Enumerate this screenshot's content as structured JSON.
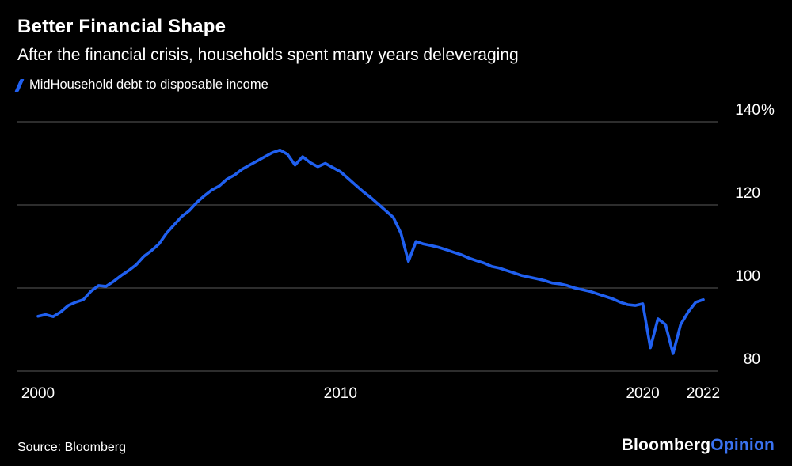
{
  "header": {
    "title": "Better Financial Shape",
    "subtitle": "After the financial crisis, households spent many years deleveraging"
  },
  "legend": {
    "label": "MidHousehold debt to disposable income"
  },
  "source": {
    "label": "Source: Bloomberg"
  },
  "logo": {
    "first": "Bloomberg",
    "second": "Opinion"
  },
  "colors": {
    "background": "#000000",
    "text": "#ffffff",
    "line": "#2060f0",
    "grid": "#5a5a5a",
    "opinion": "#3a72f0"
  },
  "chart_data": {
    "type": "line",
    "title": "Better Financial Shape",
    "subtitle": "After the financial crisis, households spent many years deleveraging",
    "legend": "MidHousehold debt to disposable income",
    "xlabel": "",
    "ylabel": "Household debt to disposable income (%)",
    "x_start": 2000,
    "x_step": 0.25,
    "ylim": [
      80,
      140
    ],
    "yticks": [
      140,
      120,
      100,
      80
    ],
    "ytick_labels": [
      "140%",
      "120",
      "100",
      "80"
    ],
    "xticks": [
      2000,
      2010,
      2020,
      2022
    ],
    "xtick_labels": [
      "2000",
      "2010",
      "2020",
      "2022"
    ],
    "grid": "horizontal",
    "legend_position": "top-left",
    "values": [
      93.2,
      93.6,
      93.1,
      94.2,
      95.8,
      96.6,
      97.2,
      99.2,
      100.6,
      100.4,
      101.6,
      103.0,
      104.2,
      105.6,
      107.6,
      109.0,
      110.6,
      113.2,
      115.2,
      117.2,
      118.6,
      120.6,
      122.2,
      123.6,
      124.6,
      126.2,
      127.2,
      128.6,
      129.6,
      130.6,
      131.6,
      132.6,
      133.2,
      132.2,
      129.6,
      131.6,
      130.2,
      129.2,
      130.0,
      129.0,
      128.0,
      126.4,
      124.8,
      123.2,
      121.8,
      120.2,
      118.6,
      117.0,
      113.2,
      106.4,
      111.2,
      110.6,
      110.2,
      109.8,
      109.2,
      108.6,
      108.0,
      107.2,
      106.6,
      106.0,
      105.2,
      104.8,
      104.2,
      103.6,
      103.0,
      102.6,
      102.2,
      101.8,
      101.2,
      101.0,
      100.6,
      100.0,
      99.6,
      99.2,
      98.6,
      98.0,
      97.4,
      96.6,
      96.0,
      95.8,
      96.2,
      85.6,
      92.6,
      91.2,
      84.2,
      91.2,
      94.2,
      96.6,
      97.2
    ]
  }
}
